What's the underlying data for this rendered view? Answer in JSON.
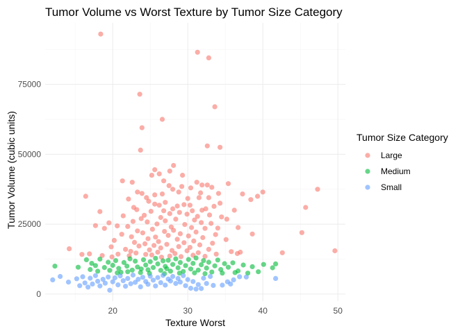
{
  "chart_data": {
    "type": "scatter",
    "title": "Tumor Volume vs Worst Texture by Tumor Size Category",
    "xlabel": "Texture Worst",
    "ylabel": "Tumor Volume (cubic units)",
    "xlim": [
      11,
      51
    ],
    "ylim": [
      -2500,
      97000
    ],
    "x_ticks": [
      20,
      30,
      40,
      50
    ],
    "y_ticks": [
      0,
      25000,
      50000,
      75000
    ],
    "y_tick_labels": [
      "0",
      "25000",
      "50000",
      "75000"
    ],
    "grid": true,
    "legend": {
      "title": "Tumor Size Category",
      "position": "right"
    },
    "series": [
      {
        "name": "Large",
        "color": "#F8766D",
        "points": [
          [
            18.4,
            93000
          ],
          [
            31.3,
            86500
          ],
          [
            32.8,
            84500
          ],
          [
            23.6,
            71500
          ],
          [
            33.6,
            67000
          ],
          [
            26.6,
            62500
          ],
          [
            23.9,
            59500
          ],
          [
            32.6,
            53000
          ],
          [
            34.3,
            52500
          ],
          [
            23.7,
            51500
          ],
          [
            28.1,
            46000
          ],
          [
            27.6,
            44000
          ],
          [
            25.6,
            44500
          ],
          [
            26.2,
            43000
          ],
          [
            25.2,
            42500
          ],
          [
            29.3,
            42500
          ],
          [
            26.8,
            40500
          ],
          [
            21.3,
            40500
          ],
          [
            31.2,
            40000
          ],
          [
            22.6,
            40000
          ],
          [
            35.4,
            39500
          ],
          [
            32.6,
            39000
          ],
          [
            31.9,
            39000
          ],
          [
            27.5,
            38800
          ],
          [
            29.2,
            38500
          ],
          [
            30.4,
            38000
          ],
          [
            33.2,
            38200
          ],
          [
            28.0,
            37500
          ],
          [
            47.3,
            37500
          ],
          [
            23.3,
            36500
          ],
          [
            28.8,
            36500
          ],
          [
            40.0,
            36500
          ],
          [
            34.1,
            36000
          ],
          [
            31.7,
            36200
          ],
          [
            23.9,
            36000
          ],
          [
            37.3,
            35800
          ],
          [
            26.6,
            35800
          ],
          [
            16.4,
            35000
          ],
          [
            25.6,
            35500
          ],
          [
            24.5,
            34500
          ],
          [
            32.8,
            34500
          ],
          [
            39.3,
            35000
          ],
          [
            38.4,
            33800
          ],
          [
            30.0,
            34200
          ],
          [
            22.1,
            34000
          ],
          [
            31.5,
            34500
          ],
          [
            27.0,
            32800
          ],
          [
            24.8,
            33200
          ],
          [
            25.6,
            32200
          ],
          [
            26.2,
            31800
          ],
          [
            28.6,
            31500
          ],
          [
            30.3,
            31800
          ],
          [
            33.5,
            31400
          ],
          [
            34.3,
            32500
          ],
          [
            29.5,
            32000
          ],
          [
            22.8,
            31000
          ],
          [
            45.7,
            31000
          ],
          [
            28.0,
            30500
          ],
          [
            32.4,
            30500
          ],
          [
            26.8,
            29800
          ],
          [
            30.6,
            29800
          ],
          [
            31.9,
            30000
          ],
          [
            18.3,
            29500
          ],
          [
            23.2,
            30200
          ],
          [
            36.2,
            30000
          ],
          [
            25.1,
            29600
          ],
          [
            28.9,
            29200
          ],
          [
            27.6,
            28800
          ],
          [
            29.9,
            28600
          ],
          [
            32.9,
            28300
          ],
          [
            24.2,
            28200
          ],
          [
            21.4,
            28000
          ],
          [
            31.3,
            27800
          ],
          [
            34.5,
            27600
          ],
          [
            26.4,
            27400
          ],
          [
            23.8,
            27000
          ],
          [
            28.4,
            26800
          ],
          [
            30.9,
            26500
          ],
          [
            35.2,
            26800
          ],
          [
            27.0,
            26200
          ],
          [
            22.7,
            26000
          ],
          [
            24.6,
            25800
          ],
          [
            19.5,
            25500
          ],
          [
            31.8,
            25600
          ],
          [
            33.1,
            25300
          ],
          [
            25.9,
            25100
          ],
          [
            29.6,
            24900
          ],
          [
            17.7,
            24500
          ],
          [
            20.6,
            24400
          ],
          [
            22.0,
            24200
          ],
          [
            27.8,
            24000
          ],
          [
            30.5,
            23800
          ],
          [
            32.3,
            23500
          ],
          [
            34.0,
            23600
          ],
          [
            36.7,
            23800
          ],
          [
            18.9,
            23500
          ],
          [
            25.3,
            23200
          ],
          [
            28.1,
            22800
          ],
          [
            23.3,
            22600
          ],
          [
            26.9,
            22400
          ],
          [
            31.1,
            22200
          ],
          [
            45.2,
            22000
          ],
          [
            24.0,
            21900
          ],
          [
            29.0,
            21600
          ],
          [
            21.2,
            21400
          ],
          [
            33.7,
            21300
          ],
          [
            38.6,
            21500
          ],
          [
            27.4,
            21000
          ],
          [
            30.1,
            20800
          ],
          [
            22.5,
            20500
          ],
          [
            25.7,
            20400
          ],
          [
            32.0,
            20200
          ],
          [
            24.7,
            19800
          ],
          [
            28.6,
            19600
          ],
          [
            35.1,
            19500
          ],
          [
            20.2,
            19200
          ],
          [
            30.8,
            19000
          ],
          [
            26.1,
            18800
          ],
          [
            22.9,
            18500
          ],
          [
            29.5,
            18400
          ],
          [
            33.3,
            18200
          ],
          [
            24.3,
            18000
          ],
          [
            27.2,
            17800
          ],
          [
            31.6,
            17600
          ],
          [
            25.5,
            17400
          ],
          [
            23.5,
            17200
          ],
          [
            28.8,
            17000
          ],
          [
            19.8,
            16900
          ],
          [
            30.3,
            16700
          ],
          [
            26.4,
            16500
          ],
          [
            14.2,
            16200
          ],
          [
            21.7,
            16000
          ],
          [
            32.8,
            16000
          ],
          [
            24.9,
            15800
          ],
          [
            27.9,
            15600
          ],
          [
            29.9,
            15500
          ],
          [
            22.4,
            15300
          ],
          [
            35.8,
            15200
          ],
          [
            37.0,
            15000
          ],
          [
            26.0,
            15000
          ],
          [
            31.4,
            14800
          ],
          [
            23.1,
            14700
          ],
          [
            28.3,
            14500
          ],
          [
            16.9,
            14400
          ],
          [
            20.7,
            14300
          ],
          [
            24.4,
            14200
          ],
          [
            42.6,
            14800
          ],
          [
            49.6,
            15500
          ],
          [
            36.6,
            14500
          ],
          [
            33.8,
            14300
          ],
          [
            25.2,
            14000
          ],
          [
            30.7,
            13900
          ],
          [
            15.9,
            14200
          ],
          [
            18.6,
            13800
          ],
          [
            22.2,
            13700
          ],
          [
            27.6,
            13600
          ],
          [
            32.3,
            13500
          ],
          [
            29.1,
            13400
          ],
          [
            19.9,
            13300
          ],
          [
            26.5,
            13200
          ]
        ]
      },
      {
        "name": "Medium",
        "color": "#00BA38",
        "points": [
          [
            12.3,
            10000
          ],
          [
            15.4,
            9600
          ],
          [
            16.5,
            12300
          ],
          [
            17.2,
            11000
          ],
          [
            17.7,
            10200
          ],
          [
            17.0,
            8800
          ],
          [
            18.3,
            12500
          ],
          [
            18.9,
            9500
          ],
          [
            19.4,
            11400
          ],
          [
            19.6,
            8500
          ],
          [
            20.0,
            10300
          ],
          [
            20.4,
            12000
          ],
          [
            20.8,
            9200
          ],
          [
            21.1,
            7800
          ],
          [
            21.5,
            11300
          ],
          [
            21.9,
            10000
          ],
          [
            22.3,
            12600
          ],
          [
            22.6,
            8600
          ],
          [
            23.0,
            11800
          ],
          [
            23.3,
            9700
          ],
          [
            23.7,
            7700
          ],
          [
            24.1,
            12300
          ],
          [
            24.4,
            10400
          ],
          [
            24.7,
            8700
          ],
          [
            25.0,
            11600
          ],
          [
            25.4,
            9500
          ],
          [
            25.7,
            12800
          ],
          [
            26.0,
            10800
          ],
          [
            26.4,
            8500
          ],
          [
            26.7,
            11900
          ],
          [
            27.0,
            9900
          ],
          [
            27.4,
            12100
          ],
          [
            27.7,
            8200
          ],
          [
            28.0,
            10600
          ],
          [
            28.4,
            12600
          ],
          [
            28.7,
            9400
          ],
          [
            29.0,
            11300
          ],
          [
            29.4,
            8100
          ],
          [
            29.7,
            10200
          ],
          [
            30.1,
            12400
          ],
          [
            30.4,
            9000
          ],
          [
            30.7,
            11000
          ],
          [
            31.1,
            12900
          ],
          [
            31.4,
            8600
          ],
          [
            31.8,
            10500
          ],
          [
            32.1,
            12000
          ],
          [
            32.5,
            9300
          ],
          [
            32.8,
            11400
          ],
          [
            33.2,
            7900
          ],
          [
            33.6,
            10100
          ],
          [
            34.0,
            12200
          ],
          [
            34.4,
            8800
          ],
          [
            34.9,
            10900
          ],
          [
            35.4,
            9600
          ],
          [
            36.0,
            11200
          ],
          [
            36.7,
            8300
          ],
          [
            37.4,
            10400
          ],
          [
            38.0,
            7500
          ],
          [
            38.6,
            9800
          ],
          [
            39.4,
            8000
          ],
          [
            40.1,
            10600
          ],
          [
            41.3,
            9400
          ],
          [
            41.7,
            10800
          ],
          [
            18.0,
            8200
          ],
          [
            20.6,
            7600
          ],
          [
            22.0,
            8000
          ],
          [
            24.9,
            7400
          ],
          [
            26.9,
            7300
          ],
          [
            28.9,
            7500
          ],
          [
            30.9,
            7600
          ],
          [
            32.3,
            7300
          ],
          [
            34.6,
            7500
          ],
          [
            36.3,
            7700
          ],
          [
            27.2,
            9100
          ],
          [
            23.8,
            9000
          ]
        ]
      },
      {
        "name": "Small",
        "color": "#619CFF",
        "points": [
          [
            12.0,
            5100
          ],
          [
            13.0,
            6300
          ],
          [
            14.1,
            4300
          ],
          [
            15.2,
            5500
          ],
          [
            15.6,
            3000
          ],
          [
            16.0,
            6200
          ],
          [
            16.3,
            4000
          ],
          [
            16.7,
            2500
          ],
          [
            17.0,
            5700
          ],
          [
            17.3,
            3600
          ],
          [
            17.7,
            6600
          ],
          [
            18.0,
            4600
          ],
          [
            18.3,
            2900
          ],
          [
            18.7,
            5300
          ],
          [
            19.0,
            3900
          ],
          [
            19.4,
            6100
          ],
          [
            19.6,
            1400
          ],
          [
            20.0,
            4400
          ],
          [
            20.3,
            5800
          ],
          [
            20.7,
            3300
          ],
          [
            21.0,
            6500
          ],
          [
            21.4,
            4800
          ],
          [
            21.7,
            2800
          ],
          [
            22.0,
            5600
          ],
          [
            22.4,
            3700
          ],
          [
            22.7,
            6800
          ],
          [
            23.0,
            4200
          ],
          [
            23.4,
            5300
          ],
          [
            23.7,
            2600
          ],
          [
            24.0,
            6000
          ],
          [
            24.4,
            4500
          ],
          [
            24.7,
            3500
          ],
          [
            25.0,
            6400
          ],
          [
            25.4,
            5000
          ],
          [
            25.7,
            2900
          ],
          [
            26.0,
            5900
          ],
          [
            26.4,
            4100
          ],
          [
            26.7,
            6700
          ],
          [
            27.0,
            3200
          ],
          [
            27.4,
            5400
          ],
          [
            27.7,
            4700
          ],
          [
            28.0,
            6300
          ],
          [
            28.4,
            3800
          ],
          [
            28.7,
            5600
          ],
          [
            29.0,
            4300
          ],
          [
            29.4,
            6600
          ],
          [
            29.7,
            3000
          ],
          [
            30.0,
            5200
          ],
          [
            30.4,
            2100
          ],
          [
            30.7,
            4500
          ],
          [
            31.1,
            1800
          ],
          [
            31.4,
            3400
          ],
          [
            31.8,
            2000
          ],
          [
            32.1,
            5700
          ],
          [
            32.5,
            3800
          ],
          [
            33.0,
            6300
          ],
          [
            33.4,
            3100
          ],
          [
            34.6,
            3200
          ],
          [
            35.3,
            4400
          ],
          [
            36.1,
            5100
          ],
          [
            36.9,
            6200
          ],
          [
            37.8,
            6100
          ],
          [
            41.7,
            5600
          ],
          [
            35.7,
            3600
          ]
        ]
      }
    ]
  }
}
